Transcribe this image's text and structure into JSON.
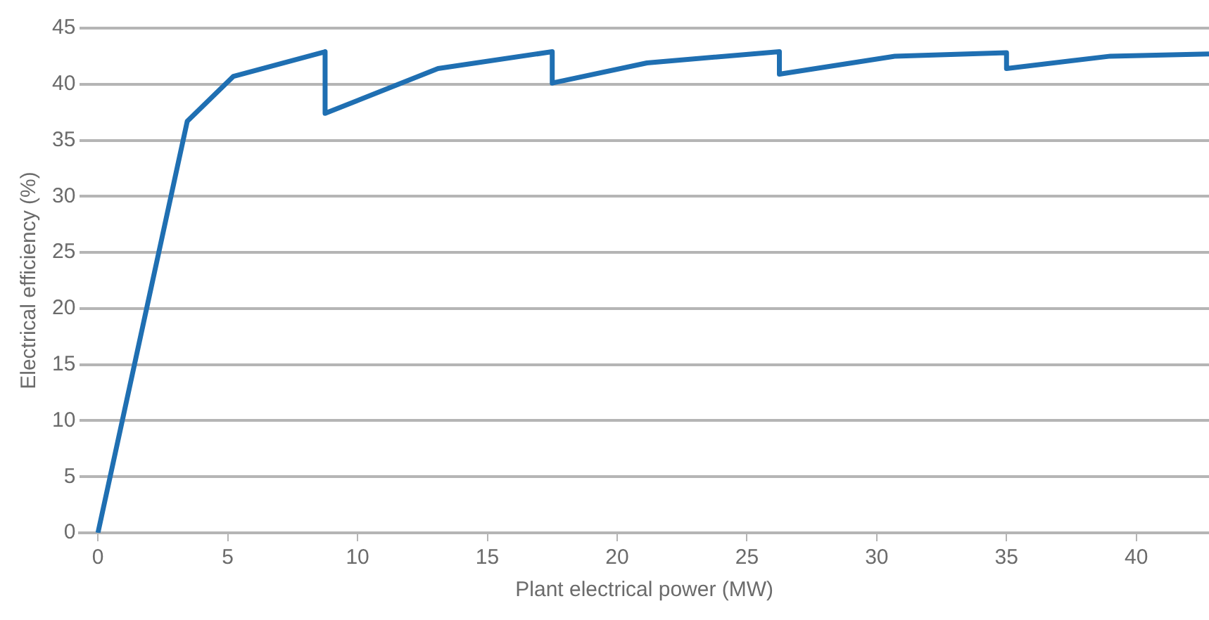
{
  "chart_data": {
    "type": "line",
    "xlabel": "Plant electrical power (MW)",
    "ylabel": "Electrical efficiency (%)",
    "x": [
      0,
      3.44,
      5.22,
      8.75,
      8.75,
      13.1,
      17.5,
      17.5,
      21.15,
      26.25,
      26.25,
      30.7,
      35,
      35,
      39,
      42.8
    ],
    "series": [
      {
        "color": "#1f6fb2",
        "values": [
          0,
          36.7,
          40.7,
          42.9,
          37.4,
          41.4,
          42.9,
          40.1,
          41.9,
          42.9,
          40.9,
          42.5,
          42.8,
          41.4,
          42.5,
          42.7
        ]
      }
    ],
    "xlim": [
      -0.7,
      42.8
    ],
    "xticks": [
      0,
      5,
      10,
      15,
      20,
      25,
      30,
      35,
      40
    ],
    "ylim": [
      0,
      45
    ],
    "yticks": [
      0,
      5,
      10,
      15,
      20,
      25,
      30,
      35,
      40,
      45
    ],
    "grid": "y",
    "legend": false,
    "marker": "none",
    "line_style": "solid"
  }
}
